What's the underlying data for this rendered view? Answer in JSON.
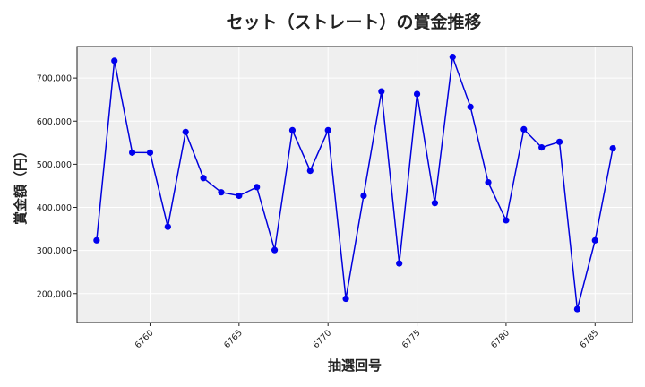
{
  "chart_data": {
    "type": "line",
    "title": "セット（ストレート）の賞金推移",
    "xlabel": "抽選回号",
    "ylabel": "賞金額（円）",
    "xlim": [
      6755.9,
      6787.1
    ],
    "ylim": [
      133000,
      773000
    ],
    "x_ticks": [
      6760,
      6765,
      6770,
      6775,
      6780,
      6785
    ],
    "x_tick_labels": [
      "6760",
      "6765",
      "6770",
      "6775",
      "6780",
      "6785"
    ],
    "y_ticks": [
      200000,
      300000,
      400000,
      500000,
      600000,
      700000
    ],
    "y_tick_labels": [
      "200,000",
      "300,000",
      "400,000",
      "500,000",
      "600,000",
      "700,000"
    ],
    "grid": true,
    "colors": {
      "line": "#0000dd",
      "marker": "#0000ee",
      "plot_bg": "#efefef",
      "grid": "#ffffff"
    },
    "series": [
      {
        "x": [
          6757,
          6758,
          6759,
          6760,
          6761,
          6762,
          6763,
          6764,
          6765,
          6766,
          6767,
          6768,
          6769,
          6770,
          6771,
          6772,
          6773,
          6774,
          6775,
          6776,
          6777,
          6778,
          6779,
          6780,
          6781,
          6782,
          6783,
          6784,
          6785,
          6786
        ],
        "values": [
          323500,
          740000,
          527100,
          527000,
          355000,
          575000,
          468000,
          435000,
          427000,
          447000,
          301000,
          579000,
          485000,
          579000,
          188000,
          427000,
          669000,
          270000,
          663000,
          410000,
          749000,
          633000,
          458000,
          370000,
          581000,
          539000,
          552000,
          164000,
          323500,
          537000
        ]
      }
    ]
  }
}
